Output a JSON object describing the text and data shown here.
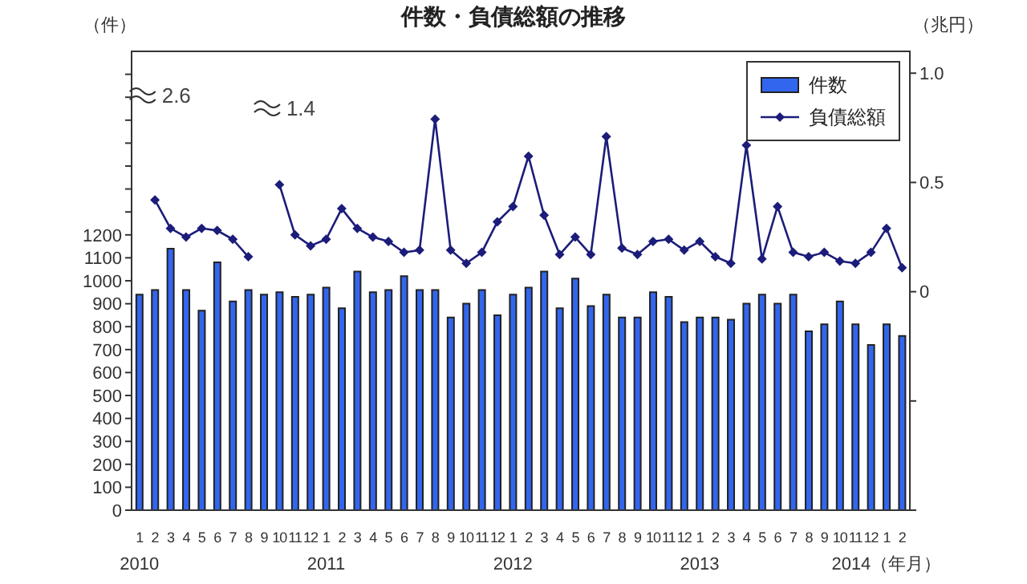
{
  "chart_data": {
    "type": "bar",
    "title": "件数・負債総額の推移",
    "ylabel": "（件）",
    "y2label": "（兆円）",
    "categories": [
      "1",
      "2",
      "3",
      "4",
      "5",
      "6",
      "7",
      "8",
      "9",
      "10",
      "11",
      "12",
      "1",
      "2",
      "3",
      "4",
      "5",
      "6",
      "7",
      "8",
      "9",
      "10",
      "11",
      "12",
      "1",
      "2",
      "3",
      "4",
      "5",
      "6",
      "7",
      "8",
      "9",
      "10",
      "11",
      "12",
      "1",
      "2",
      "3",
      "4",
      "5",
      "6",
      "7",
      "8",
      "9",
      "10",
      "11",
      "12",
      "1",
      "2"
    ],
    "series": [
      {
        "name": "件数",
        "color": "#3366ee",
        "values": [
          940,
          960,
          1140,
          960,
          870,
          1080,
          910,
          960,
          940,
          950,
          930,
          940,
          970,
          880,
          1040,
          950,
          960,
          1020,
          960,
          960,
          840,
          900,
          960,
          850,
          940,
          970,
          1040,
          880,
          1010,
          890,
          940,
          840,
          840,
          950,
          930,
          820,
          840,
          840,
          830,
          900,
          940,
          900,
          940,
          780,
          810,
          910,
          810,
          720,
          810,
          760
        ]
      },
      {
        "name": "負債総額",
        "type": "line",
        "axis": "y2",
        "color": "#1c1c7a",
        "values": [
          null,
          0.42,
          0.29,
          0.25,
          0.29,
          0.28,
          0.24,
          0.16,
          null,
          0.49,
          0.26,
          0.21,
          0.24,
          0.38,
          0.29,
          0.25,
          0.23,
          0.18,
          0.19,
          0.79,
          0.19,
          0.13,
          0.18,
          0.32,
          0.39,
          0.62,
          0.35,
          0.17,
          0.25,
          0.17,
          0.71,
          0.2,
          0.17,
          0.23,
          0.24,
          0.19,
          0.23,
          0.16,
          0.13,
          0.67,
          0.15,
          0.39,
          0.18,
          0.16,
          0.18,
          0.14,
          0.13,
          0.18,
          0.29,
          0.11
        ]
      }
    ],
    "ylim": [
      0,
      2000
    ],
    "yticks": [
      0,
      100,
      200,
      300,
      400,
      500,
      600,
      700,
      800,
      900,
      1000,
      1100,
      1200,
      {
        "value": 1300,
        "label": null
      },
      {
        "value": 1400,
        "label": null
      },
      {
        "value": 1500,
        "label": null
      },
      {
        "value": 1600,
        "label": null
      },
      {
        "value": 1700,
        "label": null
      },
      {
        "value": 1800,
        "label": null
      },
      {
        "value": 1900,
        "label": null
      }
    ],
    "y2lim": [
      -1,
      1.1
    ],
    "y2ticks": [
      {
        "value": -1,
        "label": null
      },
      {
        "value": -0.5,
        "label": null
      },
      0,
      {
        "value": 0.5,
        "label": "0.5"
      },
      {
        "value": 1,
        "label": "1.0"
      }
    ],
    "annotations": [
      "2.6",
      "1.4",
      "2010",
      "2011",
      "2012",
      "2013",
      "2014（年月）"
    ],
    "legend": "top right",
    "marker": "diamond",
    "grid": false
  }
}
